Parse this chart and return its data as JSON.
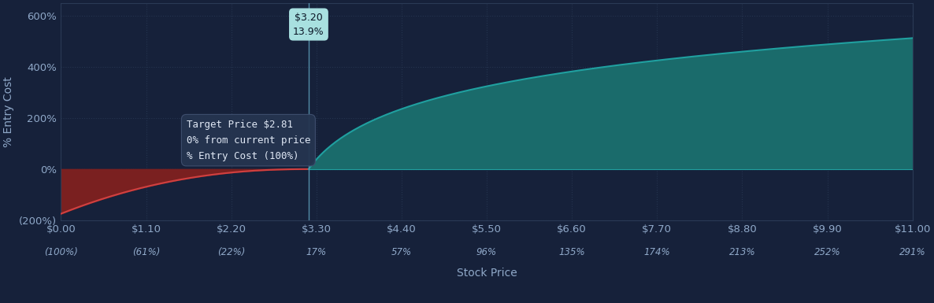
{
  "background_color": "#16213a",
  "plot_bg_color": "#16213a",
  "grid_color": "#2a3a55",
  "text_color": "#8fa8c8",
  "xlabel": "Stock Price",
  "ylabel": "% Entry Cost",
  "x_ticks_price": [
    "$0.00",
    "$1.10",
    "$2.20",
    "$3.30",
    "$4.40",
    "$5.50",
    "$6.60",
    "$7.70",
    "$8.80",
    "$9.90",
    "$11.00"
  ],
  "x_ticks_pct": [
    "(100%)",
    "(61%)",
    "(22%)",
    "17%",
    "57%",
    "96%",
    "135%",
    "174%",
    "213%",
    "252%",
    "291%"
  ],
  "x_tick_values": [
    0.0,
    1.1,
    2.2,
    3.3,
    4.4,
    5.5,
    6.6,
    7.7,
    8.8,
    9.9,
    11.0
  ],
  "ylim": [
    -200,
    650
  ],
  "xlim": [
    0.0,
    11.0
  ],
  "y_ticks": [
    -200,
    0,
    200,
    400,
    600
  ],
  "y_tick_labels": [
    "(200%)",
    "0%",
    "200%",
    "400%",
    "600%"
  ],
  "current_price": 2.81,
  "breakeven_price": 3.2,
  "breakeven_pct": "13.9%",
  "profit_fill_color": "#1a6b6b",
  "profit_edge_color": "#20a0a0",
  "loss_fill_color": "#7a2020",
  "loss_edge_color": "#d04040",
  "vertical_line_color": "#5a9ab5",
  "annotation_bg": "#a8e0e0",
  "annotation_text_color": "#0a1525",
  "annotation_italic_color": "#306070",
  "tooltip_bg": "#253550",
  "tooltip_border": "#405070",
  "tooltip_title_color": "#e0e8f5",
  "tooltip_italic_color": "#70a0b8",
  "tooltip_bold_color": "#c0e0f0"
}
